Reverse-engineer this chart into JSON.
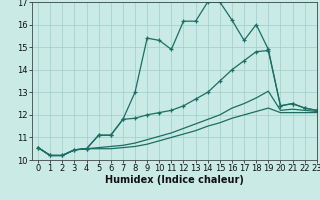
{
  "xlabel": "Humidex (Indice chaleur)",
  "xlim": [
    -0.5,
    23
  ],
  "ylim": [
    10,
    17
  ],
  "xticks": [
    0,
    1,
    2,
    3,
    4,
    5,
    6,
    7,
    8,
    9,
    10,
    11,
    12,
    13,
    14,
    15,
    16,
    17,
    18,
    19,
    20,
    21,
    22,
    23
  ],
  "yticks": [
    10,
    11,
    12,
    13,
    14,
    15,
    16,
    17
  ],
  "bg_color": "#caeae6",
  "line_color": "#1a6e63",
  "line1_x": [
    0,
    1,
    2,
    3,
    4,
    5,
    6,
    7,
    8,
    9,
    10,
    11,
    12,
    13,
    14,
    15,
    16,
    17,
    18,
    19,
    20,
    21,
    22,
    23
  ],
  "line1_y": [
    10.55,
    10.2,
    10.2,
    10.45,
    10.5,
    11.1,
    11.1,
    11.8,
    13.0,
    15.4,
    15.3,
    14.9,
    16.15,
    16.15,
    17.0,
    17.0,
    16.2,
    15.3,
    16.0,
    14.9,
    12.4,
    12.5,
    12.3,
    12.2
  ],
  "line2_x": [
    0,
    1,
    2,
    3,
    4,
    5,
    6,
    7,
    8,
    9,
    10,
    11,
    12,
    13,
    14,
    15,
    16,
    17,
    18,
    19,
    20,
    21,
    22,
    23
  ],
  "line2_y": [
    10.55,
    10.2,
    10.2,
    10.45,
    10.5,
    11.1,
    11.1,
    11.8,
    11.85,
    12.0,
    12.1,
    12.2,
    12.4,
    12.7,
    13.0,
    13.5,
    14.0,
    14.4,
    14.8,
    14.85,
    12.4,
    12.5,
    12.3,
    12.2
  ],
  "line3_x": [
    0,
    1,
    2,
    3,
    4,
    5,
    6,
    7,
    8,
    9,
    10,
    11,
    12,
    13,
    14,
    15,
    16,
    17,
    18,
    19,
    20,
    21,
    22,
    23
  ],
  "line3_y": [
    10.55,
    10.2,
    10.2,
    10.45,
    10.5,
    10.55,
    10.6,
    10.65,
    10.75,
    10.9,
    11.05,
    11.2,
    11.4,
    11.6,
    11.8,
    12.0,
    12.3,
    12.5,
    12.75,
    13.05,
    12.2,
    12.25,
    12.2,
    12.15
  ],
  "line4_x": [
    0,
    1,
    2,
    3,
    4,
    5,
    6,
    7,
    8,
    9,
    10,
    11,
    12,
    13,
    14,
    15,
    16,
    17,
    18,
    19,
    20,
    21,
    22,
    23
  ],
  "line4_y": [
    10.55,
    10.2,
    10.2,
    10.45,
    10.5,
    10.5,
    10.5,
    10.55,
    10.6,
    10.7,
    10.85,
    11.0,
    11.15,
    11.3,
    11.5,
    11.65,
    11.85,
    12.0,
    12.15,
    12.3,
    12.1,
    12.1,
    12.1,
    12.1
  ],
  "tick_fontsize": 6,
  "xlabel_fontsize": 7
}
